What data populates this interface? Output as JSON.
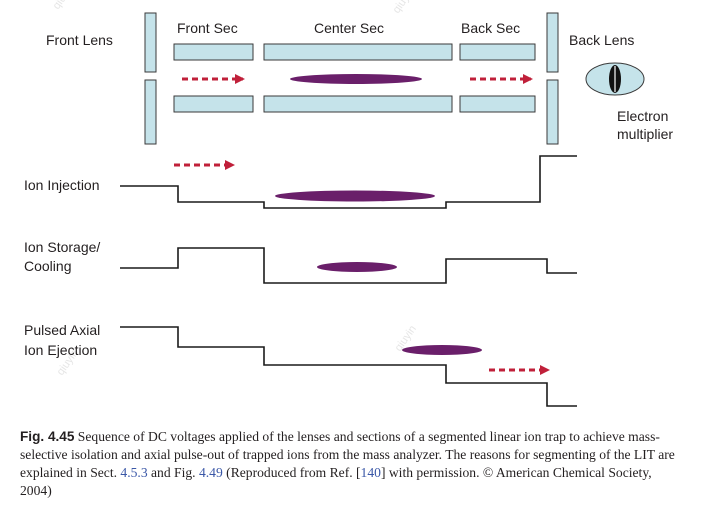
{
  "diagram": {
    "labels": {
      "front_lens": "Front Lens",
      "front_sec": "Front Sec",
      "center_sec": "Center Sec",
      "back_sec": "Back Sec",
      "back_lens": "Back Lens",
      "electron": "Electron",
      "multiplier": "multiplier"
    },
    "rows": {
      "injection": "Ion Injection",
      "storage_line1": "Ion Storage/",
      "storage_line2": "Cooling",
      "ejection_line1": "Pulsed Axial",
      "ejection_line2": "Ion Ejection"
    },
    "colors": {
      "electrode_fill": "#c5e3ea",
      "electrode_stroke": "#3a3a3a",
      "ion_cloud": "#6a1f6a",
      "arrow": "#c0203a",
      "waveform": "#1a1a1a"
    },
    "watermark": "qiuyin"
  },
  "caption": {
    "label": "Fig. 4.45",
    "text1": " Sequence of DC voltages applied of the lenses and sections of a segmented linear ion trap to achieve mass-selective isolation and axial pulse-out of trapped ions from the mass analyzer. The reasons for segmenting of the LIT are explained in Sect. ",
    "link1": "4.5.3",
    "text2": " and Fig. ",
    "link2": "4.49",
    "text3": " (Reproduced from Ref. [",
    "link3": "140",
    "text4": "] with permission. © American Chemical Society, 2004)"
  }
}
